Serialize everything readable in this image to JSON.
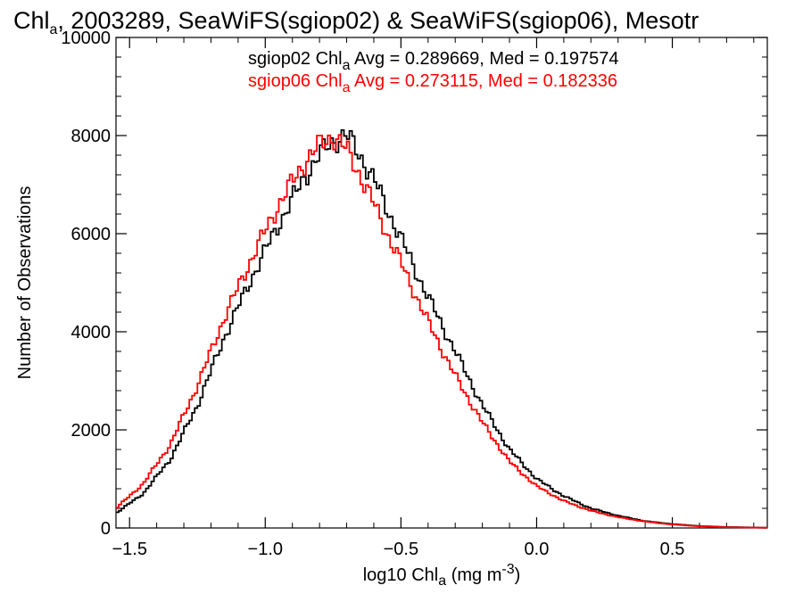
{
  "chart_data": {
    "type": "line",
    "title": {
      "main": "Chl",
      "sub": "a",
      "rest": ", 2003289, SeaWiFS(sgiop02) & SeaWiFS(sgiop06), Mesotr"
    },
    "xlabel": {
      "main": "log10 Chl",
      "sub": "a",
      "rest": " (mg m",
      "sup": "-3",
      "end": ")"
    },
    "ylabel": "Number of Observations",
    "xlim": [
      -1.55,
      0.85
    ],
    "ylim": [
      0,
      10000
    ],
    "x_ticks": [
      -1.5,
      -1.0,
      -0.5,
      0.0,
      0.5
    ],
    "x_tick_labels": [
      "−1.5",
      "−1.0",
      "−0.5",
      "0.0",
      "0.5"
    ],
    "y_ticks": [
      0,
      2000,
      4000,
      6000,
      8000,
      10000
    ],
    "y_tick_labels": [
      "0",
      "2000",
      "4000",
      "6000",
      "8000",
      "10000"
    ],
    "grid": false,
    "legend_placement": "top-right",
    "series": [
      {
        "color": "#000000",
        "label": {
          "a": "sgiop02 Chl",
          "sub": "a",
          "b": " Avg = 0.289669, Med = 0.197574"
        },
        "x": [
          -1.55,
          -1.45,
          -1.35,
          -1.25,
          -1.15,
          -1.05,
          -0.95,
          -0.85,
          -0.8,
          -0.75,
          -0.7,
          -0.65,
          -0.6,
          -0.5,
          -0.4,
          -0.3,
          -0.2,
          -0.1,
          0.0,
          0.1,
          0.2,
          0.3,
          0.4,
          0.5,
          0.6,
          0.7,
          0.8,
          0.85
        ],
        "y": [
          300,
          700,
          1400,
          2500,
          3900,
          5100,
          6200,
          7200,
          7600,
          7900,
          8000,
          7600,
          7100,
          5900,
          4700,
          3600,
          2500,
          1600,
          1000,
          650,
          400,
          250,
          140,
          80,
          40,
          20,
          10,
          5
        ]
      },
      {
        "color": "#ff0000",
        "label": {
          "a": "sgiop06 Chl",
          "sub": "a",
          "b": " Avg = 0.273115, Med = 0.182336"
        },
        "x": [
          -1.55,
          -1.45,
          -1.35,
          -1.25,
          -1.15,
          -1.05,
          -0.95,
          -0.85,
          -0.8,
          -0.75,
          -0.7,
          -0.65,
          -0.6,
          -0.5,
          -0.4,
          -0.3,
          -0.2,
          -0.1,
          0.0,
          0.1,
          0.2,
          0.3,
          0.4,
          0.5,
          0.6,
          0.7,
          0.8,
          0.85
        ],
        "y": [
          400,
          900,
          1700,
          2900,
          4300,
          5500,
          6600,
          7500,
          7800,
          8000,
          7700,
          7200,
          6600,
          5400,
          4200,
          3100,
          2150,
          1350,
          850,
          550,
          350,
          220,
          130,
          70,
          35,
          15,
          8,
          4
        ]
      }
    ]
  }
}
